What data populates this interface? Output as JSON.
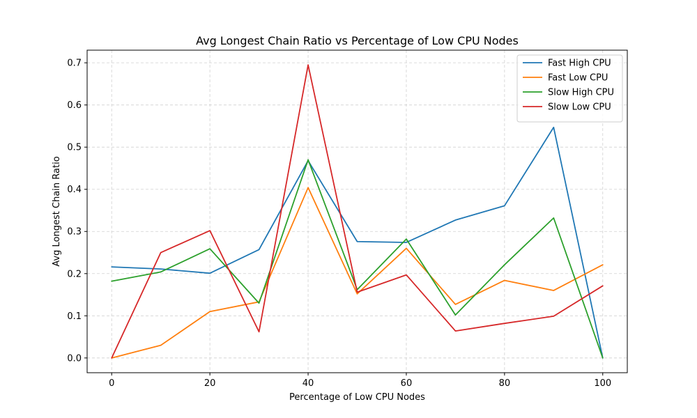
{
  "chart_data": {
    "type": "line",
    "title": "Avg Longest Chain Ratio vs Percentage of Low CPU Nodes",
    "xlabel": "Percentage of Low CPU Nodes",
    "ylabel": "Avg Longest Chain Ratio",
    "x": [
      0,
      10,
      20,
      30,
      40,
      50,
      60,
      70,
      80,
      90,
      100
    ],
    "xlim": [
      -5,
      105
    ],
    "ylim": [
      -0.035,
      0.73
    ],
    "xticks": [
      0,
      20,
      40,
      60,
      80,
      100
    ],
    "yticks": [
      "0.0",
      "0.1",
      "0.2",
      "0.3",
      "0.4",
      "0.5",
      "0.6",
      "0.7"
    ],
    "grid": true,
    "legend_position": "top-right",
    "series": [
      {
        "name": "Fast High CPU",
        "color": "#1f77b4",
        "values": [
          0.216,
          0.211,
          0.201,
          0.257,
          0.468,
          0.276,
          0.274,
          0.327,
          0.361,
          0.547,
          0.0
        ]
      },
      {
        "name": "Fast Low CPU",
        "color": "#ff7f0e",
        "values": [
          0.0,
          0.03,
          0.11,
          0.133,
          0.404,
          0.152,
          0.26,
          0.127,
          0.184,
          0.16,
          0.221
        ]
      },
      {
        "name": "Slow High CPU",
        "color": "#2ca02c",
        "values": [
          0.182,
          0.204,
          0.259,
          0.13,
          0.47,
          0.162,
          0.282,
          0.102,
          0.221,
          0.332,
          0.0
        ]
      },
      {
        "name": "Slow Low CPU",
        "color": "#d62728",
        "values": [
          0.0,
          0.25,
          0.302,
          0.062,
          0.695,
          0.156,
          0.197,
          0.064,
          0.082,
          0.099,
          0.171
        ]
      }
    ]
  }
}
